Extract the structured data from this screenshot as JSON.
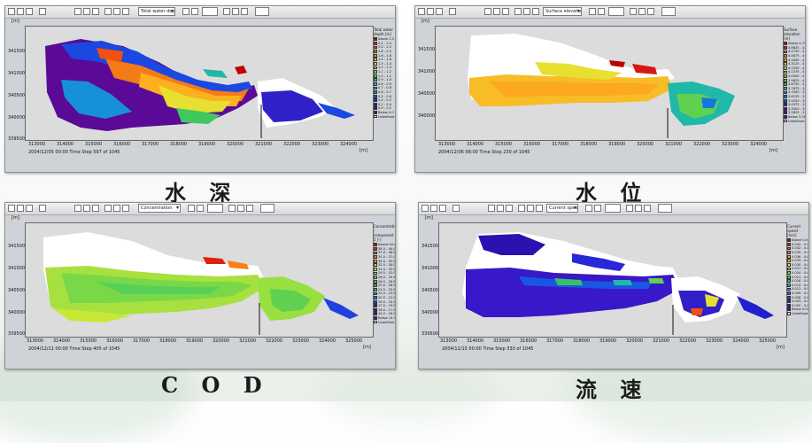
{
  "panels": [
    {
      "id": "depth",
      "caption": "水 深",
      "dropdown": "Total water depth",
      "unit_y": "[m]",
      "unit_x": "[m]",
      "yticks": [
        "341500",
        "341000",
        "340500",
        "340000",
        "339500"
      ],
      "xticks": [
        "313000",
        "314000",
        "315000",
        "316000",
        "317000",
        "318000",
        "319000",
        "320000",
        "321000",
        "322000",
        "323000",
        "324000"
      ],
      "timestep": "2004/12/05 00:00 Time Step 597 of 1045",
      "legend_title": "Total water depth [m]",
      "legend": [
        {
          "label": "Above 2.5",
          "color": "#c00000"
        },
        {
          "label": "2.2 - 2.5",
          "color": "#e02010"
        },
        {
          "label": "2.0 - 2.2",
          "color": "#f04a10"
        },
        {
          "label": "1.8 - 2.0",
          "color": "#f87818"
        },
        {
          "label": "1.6 - 1.8",
          "color": "#fca020"
        },
        {
          "label": "1.4 - 1.6",
          "color": "#fcc828"
        },
        {
          "label": "1.3 - 1.4",
          "color": "#f0e030"
        },
        {
          "label": "1.2 - 1.3",
          "color": "#c8e838"
        },
        {
          "label": "1.1 - 1.2",
          "color": "#98e040"
        },
        {
          "label": "1.0 - 1.1",
          "color": "#60d848"
        },
        {
          "label": "0.9 - 1.0",
          "color": "#38c858"
        },
        {
          "label": "0.8 - 0.9",
          "color": "#20c0a0"
        },
        {
          "label": "0.7 - 0.8",
          "color": "#18a8d0"
        },
        {
          "label": "0.6 - 0.7",
          "color": "#1080e0"
        },
        {
          "label": "0.5 - 0.6",
          "color": "#1850e8"
        },
        {
          "label": "0.4 - 0.5",
          "color": "#2020d8"
        },
        {
          "label": "0.2 - 0.4",
          "color": "#3010c0"
        },
        {
          "label": "0.0 - 0.2",
          "color": "#4a0898"
        },
        {
          "label": "Below 0.0",
          "color": "#600070"
        },
        {
          "label": "Undefined Value",
          "color": "#ffffff"
        }
      ]
    },
    {
      "id": "level",
      "caption": "水 位",
      "dropdown": "Surface elevation",
      "unit_y": "[m]",
      "unit_x": "[m]",
      "yticks": [
        "341500",
        "341000",
        "340500",
        "340000"
      ],
      "xticks": [
        "313000",
        "314000",
        "315000",
        "316000",
        "317000",
        "318000",
        "319000",
        "320000",
        "321000",
        "322000",
        "323000",
        "324000"
      ],
      "timestep": "2004/12/06 08:00 Time Step 230 of 1045",
      "legend_title": "Surface elevation [m]",
      "legend": [
        {
          "label": "Above 4.7500",
          "color": "#c00000"
        },
        {
          "label": "4.6625 - 4.7500",
          "color": "#e02010"
        },
        {
          "label": "4.5750 - 4.6625",
          "color": "#f05010"
        },
        {
          "label": "4.4875 - 4.5750",
          "color": "#f88018"
        },
        {
          "label": "4.4000 - 4.4875",
          "color": "#fca820"
        },
        {
          "label": "4.3125 - 4.4000",
          "color": "#f8d028"
        },
        {
          "label": "4.2250 - 4.3125",
          "color": "#e8e030"
        },
        {
          "label": "4.1375 - 4.2250",
          "color": "#c0e038"
        },
        {
          "label": "4.0500 - 4.1375",
          "color": "#90d840"
        },
        {
          "label": "3.9625 - 4.0500",
          "color": "#60d050"
        },
        {
          "label": "3.8750 - 3.9625",
          "color": "#38c068"
        },
        {
          "label": "3.7875 - 3.8750",
          "color": "#20b8a8"
        },
        {
          "label": "3.7000 - 3.7875",
          "color": "#18a0d0"
        },
        {
          "label": "3.6125 - 3.7000",
          "color": "#1078e0"
        },
        {
          "label": "3.5250 - 3.6125",
          "color": "#1848e8"
        },
        {
          "label": "3.4375 - 3.5250",
          "color": "#2020d0"
        },
        {
          "label": "3.3500 - 3.4375",
          "color": "#3010b8"
        },
        {
          "label": "3.2625 - 3.3500",
          "color": "#480898"
        },
        {
          "label": "Below 3.2625",
          "color": "#600070"
        },
        {
          "label": "Undefined Value",
          "color": "#ffffff"
        }
      ]
    },
    {
      "id": "cod",
      "caption": "C O D",
      "dropdown": "Concentration",
      "unit_y": "[m]",
      "unit_x": "[m]",
      "yticks": [
        "341500",
        "341000",
        "340500",
        "340000",
        "339500"
      ],
      "xticks": [
        "313000",
        "314000",
        "315000",
        "316000",
        "317000",
        "318000",
        "319000",
        "320000",
        "321000",
        "322000",
        "323000",
        "324000",
        "325000"
      ],
      "timestep": "2004/12/11 00:00 Time Step 405 of 1045",
      "legend_title": "Concentration - component 1 [-]",
      "legend": [
        {
          "label": "Above 40.0",
          "color": "#c00000"
        },
        {
          "label": "38.5 - 40.0",
          "color": "#e02010"
        },
        {
          "label": "37.0 - 38.5",
          "color": "#f05010"
        },
        {
          "label": "35.5 - 37.0",
          "color": "#f88018"
        },
        {
          "label": "34.0 - 35.5",
          "color": "#fca820"
        },
        {
          "label": "32.5 - 34.0",
          "color": "#f8d028"
        },
        {
          "label": "31.0 - 32.5",
          "color": "#e8e030"
        },
        {
          "label": "29.5 - 31.0",
          "color": "#c0e038"
        },
        {
          "label": "28.0 - 29.5",
          "color": "#90d840"
        },
        {
          "label": "26.5 - 28.0",
          "color": "#60d050"
        },
        {
          "label": "25.0 - 26.5",
          "color": "#38c068"
        },
        {
          "label": "23.5 - 25.0",
          "color": "#20b8a8"
        },
        {
          "label": "22.0 - 23.5",
          "color": "#18a0d0"
        },
        {
          "label": "20.5 - 22.0",
          "color": "#1078e0"
        },
        {
          "label": "19.0 - 20.5",
          "color": "#1848e8"
        },
        {
          "label": "17.5 - 19.0",
          "color": "#2020d0"
        },
        {
          "label": "16.0 - 17.5",
          "color": "#3010b8"
        },
        {
          "label": "14.5 - 16.0",
          "color": "#480898"
        },
        {
          "label": "Below 14.5",
          "color": "#600070"
        },
        {
          "label": "Undefined Value",
          "color": "#ffffff"
        }
      ]
    },
    {
      "id": "speed",
      "caption": "流 速",
      "dropdown": "Current speed",
      "unit_y": "[m]",
      "unit_x": "[m]",
      "yticks": [
        "341500",
        "341000",
        "340500",
        "340000",
        "339500"
      ],
      "xticks": [
        "313000",
        "314000",
        "315000",
        "316000",
        "317000",
        "318000",
        "319000",
        "320000",
        "321000",
        "322000",
        "323000",
        "324000",
        "325000"
      ],
      "timestep": "2004/12/15 00:00 Time Step 330 of 1045",
      "legend_title": "Current speed [m/s]",
      "legend": [
        {
          "label": "Above 0.048",
          "color": "#c00000"
        },
        {
          "label": "0.045 - 0.048",
          "color": "#e02010"
        },
        {
          "label": "0.042 - 0.045",
          "color": "#f05010"
        },
        {
          "label": "0.039 - 0.042",
          "color": "#f88018"
        },
        {
          "label": "0.036 - 0.039",
          "color": "#fca820"
        },
        {
          "label": "0.033 - 0.036",
          "color": "#f8d028"
        },
        {
          "label": "0.030 - 0.033",
          "color": "#e8e030"
        },
        {
          "label": "0.027 - 0.030",
          "color": "#c0e038"
        },
        {
          "label": "0.024 - 0.027",
          "color": "#90d840"
        },
        {
          "label": "0.021 - 0.024",
          "color": "#60d050"
        },
        {
          "label": "0.018 - 0.021",
          "color": "#38c068"
        },
        {
          "label": "0.015 - 0.018",
          "color": "#20b8a8"
        },
        {
          "label": "0.012 - 0.015",
          "color": "#18a0d0"
        },
        {
          "label": "0.009 - 0.012",
          "color": "#1078e0"
        },
        {
          "label": "0.006 - 0.009",
          "color": "#1848e8"
        },
        {
          "label": "0.003 - 0.006",
          "color": "#2020d0"
        },
        {
          "label": "0.000 - 0.003",
          "color": "#3010b8"
        },
        {
          "label": "Below 0.000",
          "color": "#480898"
        },
        {
          "label": "Undefined Value",
          "color": "#ffffff"
        }
      ]
    }
  ]
}
